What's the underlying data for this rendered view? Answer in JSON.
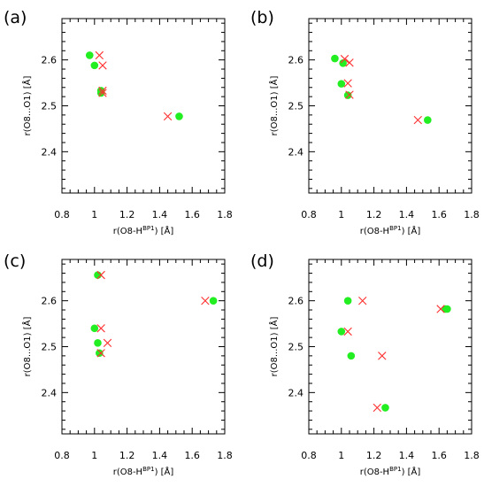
{
  "chart_data": [
    {
      "panel": "(a)",
      "type": "scatter",
      "xlabel": "r(O8-H",
      "xlabel_sup": "BP1",
      "xlabel_end": ") [Å]",
      "ylabel": "r(O8...O1) [Å]",
      "xlim": [
        0.8,
        1.8
      ],
      "ylim": [
        2.31,
        2.69
      ],
      "xticks": [
        "0.8",
        "1",
        "1.2",
        "1.4",
        "1.6",
        "1.8"
      ],
      "yticks": [
        "2.4",
        "2.5",
        "2.6"
      ],
      "series": [
        {
          "marker": "circle",
          "color": "#22ee22",
          "points": [
            [
              0.97,
              2.61
            ],
            [
              1.0,
              2.588
            ],
            [
              1.04,
              2.533
            ],
            [
              1.04,
              2.528
            ],
            [
              1.52,
              2.477
            ]
          ]
        },
        {
          "marker": "cross",
          "color": "#ff3030",
          "points": [
            [
              1.03,
              2.61
            ],
            [
              1.05,
              2.588
            ],
            [
              1.05,
              2.533
            ],
            [
              1.05,
              2.528
            ],
            [
              1.45,
              2.477
            ]
          ]
        }
      ]
    },
    {
      "panel": "(b)",
      "type": "scatter",
      "xlabel": "r(O8-H",
      "xlabel_sup": "BP1",
      "xlabel_end": ") [Å]",
      "ylabel": "r(O8...O1) [Å]",
      "xlim": [
        0.8,
        1.8
      ],
      "ylim": [
        2.31,
        2.69
      ],
      "xticks": [
        "0.8",
        "1",
        "1.2",
        "1.4",
        "1.6",
        "1.8"
      ],
      "yticks": [
        "2.4",
        "2.5",
        "2.6"
      ],
      "series": [
        {
          "marker": "circle",
          "color": "#22ee22",
          "points": [
            [
              0.96,
              2.603
            ],
            [
              1.0,
              2.548
            ],
            [
              1.01,
              2.593
            ],
            [
              1.04,
              2.523
            ],
            [
              1.53,
              2.469
            ]
          ]
        },
        {
          "marker": "cross",
          "color": "#ff3030",
          "points": [
            [
              1.02,
              2.602
            ],
            [
              1.05,
              2.594
            ],
            [
              1.04,
              2.549
            ],
            [
              1.05,
              2.524
            ],
            [
              1.47,
              2.469
            ]
          ]
        }
      ]
    },
    {
      "panel": "(c)",
      "type": "scatter",
      "xlabel": "r(O8-H",
      "xlabel_sup": "BP1",
      "xlabel_end": ") [Å]",
      "ylabel": "r(O8...O1) [Å]",
      "xlim": [
        0.8,
        1.8
      ],
      "ylim": [
        2.31,
        2.69
      ],
      "xticks": [
        "0.8",
        "1",
        "1.2",
        "1.4",
        "1.6",
        "1.8"
      ],
      "yticks": [
        "2.4",
        "2.5",
        "2.6"
      ],
      "series": [
        {
          "marker": "circle",
          "color": "#22ee22",
          "points": [
            [
              1.02,
              2.656
            ],
            [
              1.0,
              2.54
            ],
            [
              1.02,
              2.508
            ],
            [
              1.03,
              2.486
            ],
            [
              1.73,
              2.6
            ]
          ]
        },
        {
          "marker": "cross",
          "color": "#ff3030",
          "points": [
            [
              1.04,
              2.656
            ],
            [
              1.04,
              2.54
            ],
            [
              1.08,
              2.508
            ],
            [
              1.04,
              2.486
            ],
            [
              1.68,
              2.6
            ]
          ]
        }
      ]
    },
    {
      "panel": "(d)",
      "type": "scatter",
      "xlabel": "r(O8-H",
      "xlabel_sup": "BP1",
      "xlabel_end": ") [Å]",
      "ylabel": "r(O8...O1) [Å]",
      "xlim": [
        0.8,
        1.8
      ],
      "ylim": [
        2.31,
        2.69
      ],
      "xticks": [
        "0.8",
        "1",
        "1.2",
        "1.4",
        "1.6",
        "1.8"
      ],
      "yticks": [
        "2.4",
        "2.5",
        "2.6"
      ],
      "series": [
        {
          "marker": "circle",
          "color": "#22ee22",
          "points": [
            [
              1.04,
              2.6
            ],
            [
              1.0,
              2.533
            ],
            [
              1.06,
              2.48
            ],
            [
              1.27,
              2.367
            ],
            [
              1.64,
              2.582
            ],
            [
              1.65,
              2.582
            ]
          ]
        },
        {
          "marker": "cross",
          "color": "#ff3030",
          "points": [
            [
              1.13,
              2.6
            ],
            [
              1.04,
              2.533
            ],
            [
              1.25,
              2.48
            ],
            [
              1.22,
              2.367
            ],
            [
              1.61,
              2.582
            ]
          ]
        }
      ]
    }
  ]
}
